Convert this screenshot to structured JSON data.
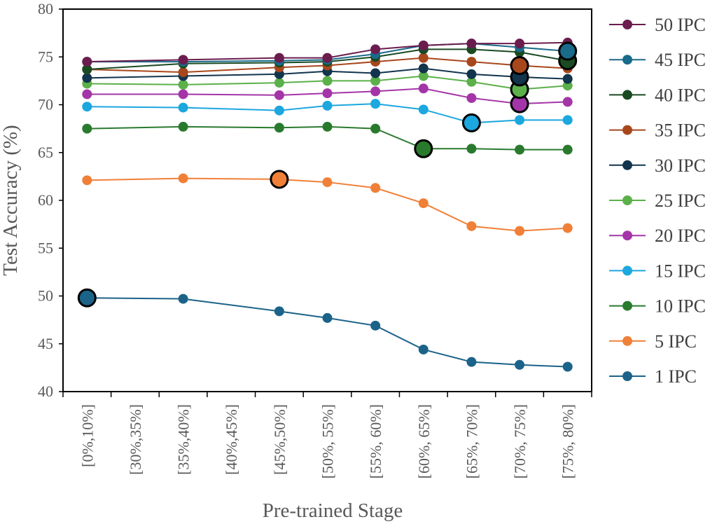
{
  "chart_data": {
    "type": "line",
    "title": "",
    "xlabel": "Pre-trained Stage",
    "ylabel": "Test  Accuracy (%)",
    "ylim": [
      40,
      80
    ],
    "y_ticks": [
      40,
      45,
      50,
      55,
      60,
      65,
      70,
      75,
      80
    ],
    "grid": false,
    "legend_position": "right",
    "categories": [
      "[0%,10%]",
      "[30%,35%]",
      "[35%,40%]",
      "[40%,45%]",
      "[45%,50%]",
      "[50%, 55%]",
      "[55%, 60%]",
      "[60%, 65%]",
      "[65%, 70%]",
      "[70%, 75%]",
      "[75%, 80%]"
    ],
    "series": [
      {
        "name": "50 IPC",
        "color": "#6b1d4e",
        "points": [
          [
            0,
            74.5
          ],
          [
            2,
            74.7
          ],
          [
            4,
            74.9
          ],
          [
            5,
            74.9
          ],
          [
            6,
            75.8
          ],
          [
            7,
            76.2
          ],
          [
            8,
            76.4
          ],
          [
            9,
            76.4
          ],
          [
            10,
            76.5
          ]
        ],
        "highlight_index": 10
      },
      {
        "name": "45 IPC",
        "color": "#1a6a8a",
        "points": [
          [
            0,
            74.5
          ],
          [
            2,
            74.5
          ],
          [
            4,
            74.6
          ],
          [
            5,
            74.7
          ],
          [
            6,
            75.3
          ],
          [
            7,
            76.2
          ],
          [
            8,
            76.4
          ],
          [
            9,
            76.0
          ],
          [
            10,
            75.6
          ]
        ],
        "highlight_index": 8
      },
      {
        "name": "40 IPC",
        "color": "#1a4a22",
        "points": [
          [
            0,
            73.7
          ],
          [
            2,
            74.3
          ],
          [
            4,
            74.4
          ],
          [
            5,
            74.5
          ],
          [
            6,
            75.0
          ],
          [
            7,
            75.8
          ],
          [
            8,
            75.8
          ],
          [
            9,
            75.5
          ],
          [
            10,
            74.6
          ]
        ],
        "highlight_index": 8
      },
      {
        "name": "35 IPC",
        "color": "#a8471c",
        "points": [
          [
            0,
            73.7
          ],
          [
            2,
            73.4
          ],
          [
            4,
            73.9
          ],
          [
            5,
            74.1
          ],
          [
            6,
            74.5
          ],
          [
            7,
            74.9
          ],
          [
            8,
            74.5
          ],
          [
            9,
            74.1
          ],
          [
            10,
            73.8
          ]
        ],
        "highlight_index": 7
      },
      {
        "name": "30 IPC",
        "color": "#12344d",
        "points": [
          [
            0,
            72.8
          ],
          [
            2,
            73.0
          ],
          [
            4,
            73.2
          ],
          [
            5,
            73.5
          ],
          [
            6,
            73.3
          ],
          [
            7,
            73.8
          ],
          [
            8,
            73.2
          ],
          [
            9,
            72.9
          ],
          [
            10,
            72.7
          ]
        ],
        "highlight_index": 7
      },
      {
        "name": "25 IPC",
        "color": "#5bb04a",
        "points": [
          [
            0,
            72.2
          ],
          [
            2,
            72.1
          ],
          [
            4,
            72.3
          ],
          [
            5,
            72.5
          ],
          [
            6,
            72.5
          ],
          [
            7,
            73.0
          ],
          [
            8,
            72.4
          ],
          [
            9,
            71.6
          ],
          [
            10,
            72.0
          ]
        ],
        "highlight_index": 7
      },
      {
        "name": "20 IPC",
        "color": "#a435a8",
        "points": [
          [
            0,
            71.1
          ],
          [
            2,
            71.1
          ],
          [
            4,
            71.0
          ],
          [
            5,
            71.2
          ],
          [
            6,
            71.4
          ],
          [
            7,
            71.7
          ],
          [
            8,
            70.7
          ],
          [
            9,
            70.1
          ],
          [
            10,
            70.3
          ]
        ],
        "highlight_index": 7
      },
      {
        "name": "15 IPC",
        "color": "#1ca7df",
        "points": [
          [
            0,
            69.8
          ],
          [
            2,
            69.7
          ],
          [
            4,
            69.4
          ],
          [
            5,
            69.9
          ],
          [
            6,
            70.1
          ],
          [
            7,
            69.5
          ],
          [
            8,
            68.1
          ],
          [
            9,
            68.4
          ],
          [
            10,
            68.4
          ]
        ],
        "highlight_index": 6
      },
      {
        "name": "10 IPC",
        "color": "#2a7a2e",
        "points": [
          [
            0,
            67.5
          ],
          [
            2,
            67.7
          ],
          [
            4,
            67.6
          ],
          [
            5,
            67.7
          ],
          [
            6,
            67.5
          ],
          [
            7,
            65.4
          ],
          [
            8,
            65.4
          ],
          [
            9,
            65.3
          ],
          [
            10,
            65.3
          ]
        ],
        "highlight_index": 5
      },
      {
        "name": "5 IPC",
        "color": "#f08038",
        "points": [
          [
            0,
            62.1
          ],
          [
            2,
            62.3
          ],
          [
            4,
            62.2
          ],
          [
            5,
            61.9
          ],
          [
            6,
            61.3
          ],
          [
            7,
            59.7
          ],
          [
            8,
            57.3
          ],
          [
            9,
            56.8
          ],
          [
            10,
            57.1
          ]
        ],
        "highlight_index": 2
      },
      {
        "name": "1 IPC",
        "color": "#1b6389",
        "points": [
          [
            0,
            49.8
          ],
          [
            2,
            49.7
          ],
          [
            4,
            48.4
          ],
          [
            5,
            47.7
          ],
          [
            6,
            46.9
          ],
          [
            7,
            44.4
          ],
          [
            8,
            43.1
          ],
          [
            9,
            42.8
          ],
          [
            10,
            42.6
          ]
        ],
        "highlight_index": 0
      }
    ]
  }
}
